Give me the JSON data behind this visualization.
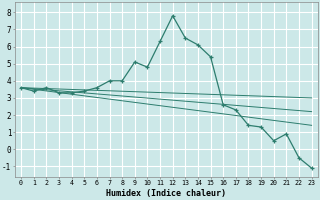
{
  "title": "",
  "xlabel": "Humidex (Indice chaleur)",
  "bg_color": "#cce8e8",
  "grid_color": "#ffffff",
  "line_color": "#2d7d6e",
  "xlim": [
    -0.5,
    23.5
  ],
  "ylim": [
    -1.6,
    8.6
  ],
  "xticks": [
    0,
    1,
    2,
    3,
    4,
    5,
    6,
    7,
    8,
    9,
    10,
    11,
    12,
    13,
    14,
    15,
    16,
    17,
    18,
    19,
    20,
    21,
    22,
    23
  ],
  "yticks": [
    -1,
    0,
    1,
    2,
    3,
    4,
    5,
    6,
    7,
    8
  ],
  "main_x": [
    0,
    1,
    2,
    3,
    4,
    5,
    6,
    7,
    8,
    9,
    10,
    11,
    12,
    13,
    14,
    15,
    16,
    17,
    18,
    19,
    20,
    21,
    22,
    23
  ],
  "main_y": [
    3.6,
    3.4,
    3.6,
    3.3,
    3.3,
    3.4,
    3.6,
    4.0,
    4.0,
    5.1,
    4.8,
    6.3,
    7.8,
    6.5,
    6.1,
    5.4,
    2.6,
    2.3,
    1.4,
    1.3,
    0.5,
    0.9,
    -0.5,
    -1.1
  ],
  "line1_x": [
    0,
    23
  ],
  "line1_y": [
    3.6,
    3.0
  ],
  "line2_x": [
    0,
    23
  ],
  "line2_y": [
    3.6,
    2.2
  ],
  "line3_x": [
    0,
    23
  ],
  "line3_y": [
    3.6,
    1.4
  ]
}
